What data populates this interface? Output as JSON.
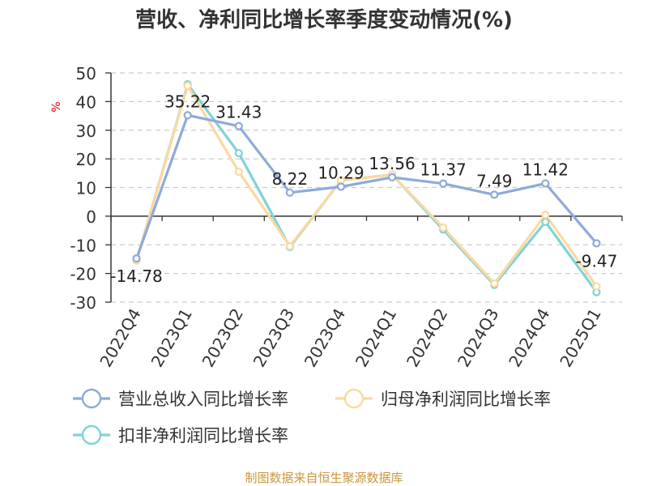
{
  "chart_data": {
    "type": "line",
    "title": "营收、净利同比增长率季度变动情况(%)",
    "ylabel": "%",
    "xlabel": "",
    "ylim": [
      -30,
      50
    ],
    "yticks": [
      50,
      40,
      30,
      20,
      10,
      0,
      -10,
      -20,
      -30
    ],
    "grid": true,
    "legend_position": "bottom",
    "categories": [
      "2022Q4",
      "2023Q1",
      "2023Q2",
      "2023Q3",
      "2023Q4",
      "2024Q1",
      "2024Q2",
      "2024Q3",
      "2024Q4",
      "2025Q1"
    ],
    "series": [
      {
        "name": "营业总收入同比增长率",
        "color": "#8eaadb",
        "values": [
          -14.78,
          35.22,
          31.43,
          8.22,
          10.29,
          13.56,
          11.37,
          7.49,
          11.42,
          -9.47
        ],
        "labels": [
          "-14.78",
          "35.22",
          "31.43",
          "8.22",
          "10.29",
          "13.56",
          "11.37",
          "7.49",
          "11.42",
          "-9.47"
        ]
      },
      {
        "name": "归母净利润同比增长率",
        "color": "#fad9a1",
        "values": [
          -15.5,
          45.5,
          15.5,
          -10.5,
          12.5,
          14.5,
          -4.0,
          -23.5,
          0.5,
          -24.5
        ]
      },
      {
        "name": "扣非净利润同比增长率",
        "color": "#7fd3d6",
        "values": [
          -15.5,
          46.0,
          22.0,
          -10.8,
          12.5,
          14.5,
          -4.7,
          -24.0,
          -2.0,
          -26.5
        ]
      }
    ],
    "source": "制图数据来自恒生聚源数据库"
  },
  "colors": {
    "title": "#333333",
    "axis": "#333333",
    "grid": "#cccccc",
    "ylabel": "#e60000",
    "source": "#c8963c"
  }
}
